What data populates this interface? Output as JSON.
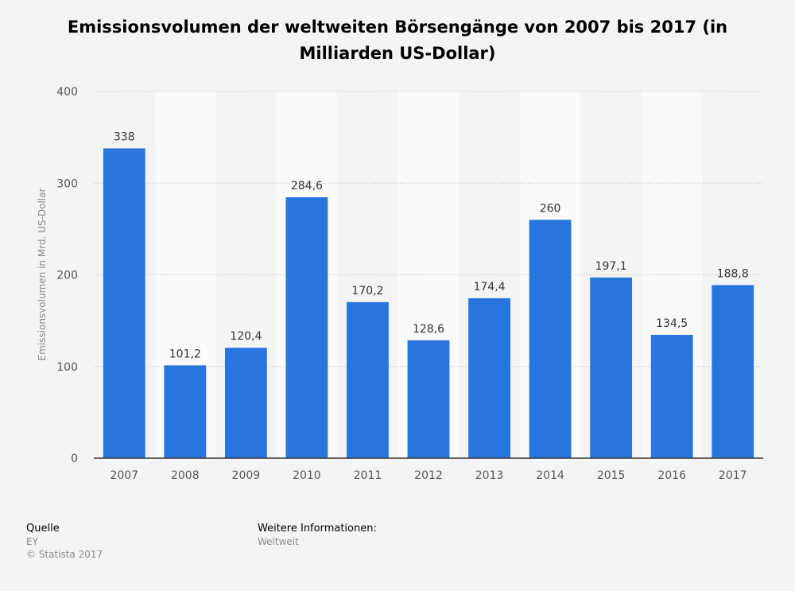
{
  "chart_data": {
    "type": "bar",
    "title": "Emissionsvolumen der weltweiten Börsengänge von 2007 bis 2017 (in Milliarden US-Dollar)",
    "xlabel": "",
    "ylabel": "Emissionsvolumen in Mrd. US-Dollar",
    "categories": [
      "2007",
      "2008",
      "2009",
      "2010",
      "2011",
      "2012",
      "2013",
      "2014",
      "2015",
      "2016",
      "2017"
    ],
    "values": [
      338,
      101.2,
      120.4,
      284.6,
      170.2,
      128.6,
      174.4,
      260,
      197.1,
      134.5,
      188.8
    ],
    "value_labels": [
      "338",
      "101,2",
      "120,4",
      "284,6",
      "170,2",
      "128,6",
      "174,4",
      "260",
      "197,1",
      "134,5",
      "188,8"
    ],
    "ylim": [
      0,
      400
    ],
    "yticks": [
      "0",
      "100",
      "200",
      "300",
      "400"
    ],
    "grid": true,
    "bar_color": "#2876dd"
  },
  "footer": {
    "source_heading": "Quelle",
    "source": "EY",
    "copyright": "© Statista 2017",
    "info_heading": "Weitere Informationen:",
    "info": "Weltweit"
  }
}
